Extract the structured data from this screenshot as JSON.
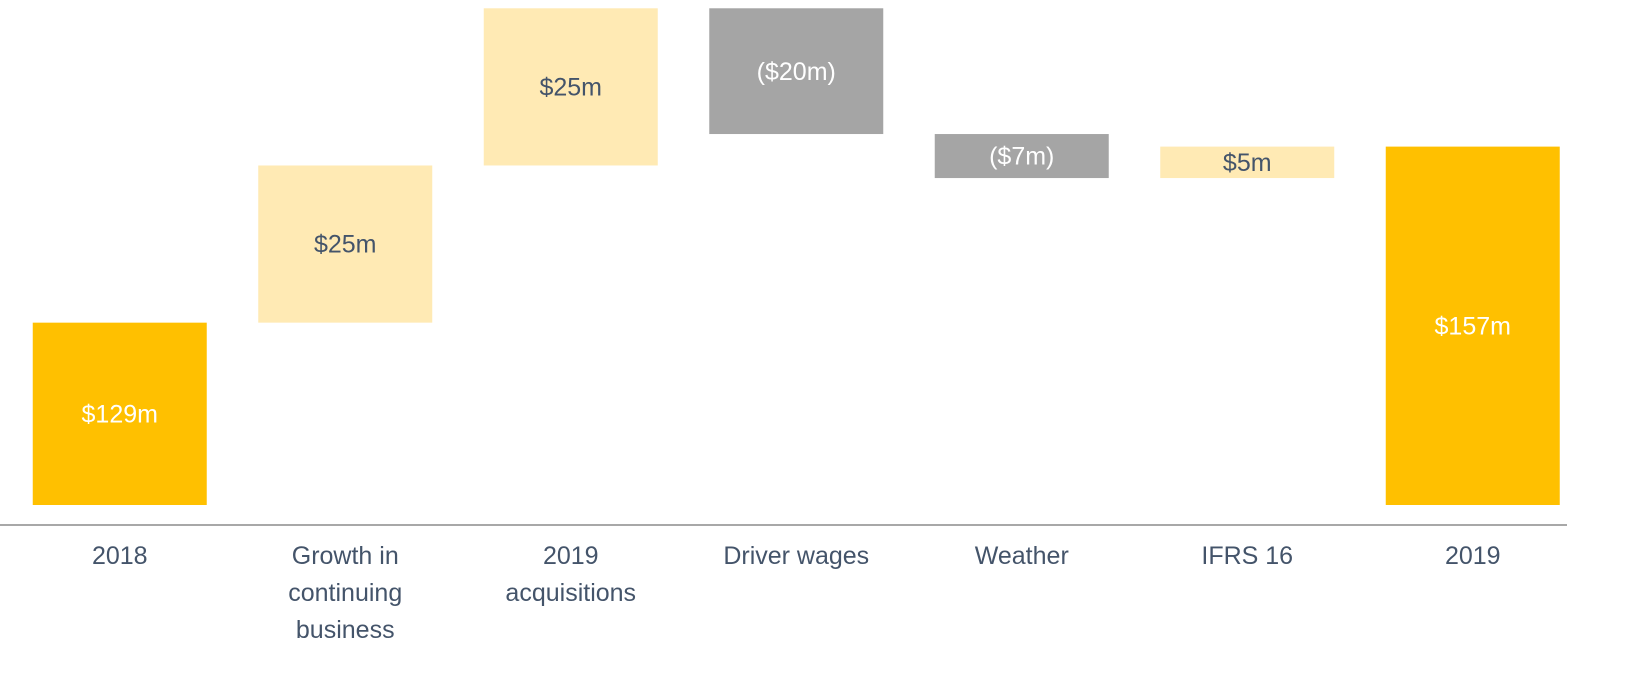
{
  "chart_data": {
    "type": "waterfall",
    "categories": [
      "2018",
      "Growth in continuing business",
      "2019 acquisitions",
      "Driver wages",
      "Weather",
      "IFRS 16",
      "2019"
    ],
    "values": [
      129,
      25,
      25,
      -20,
      -7,
      5,
      157
    ],
    "value_labels": [
      "$129m",
      "$25m",
      "$25m",
      "($20m)",
      "($7m)",
      "$5m",
      "$157m"
    ],
    "measure": [
      "absolute",
      "relative",
      "relative",
      "relative",
      "relative",
      "relative",
      "total"
    ],
    "colors": {
      "total": "#ffc000",
      "increase": "#ffeab4",
      "decrease": "#a5a5a5"
    },
    "ylim": [
      100,
      180
    ]
  }
}
